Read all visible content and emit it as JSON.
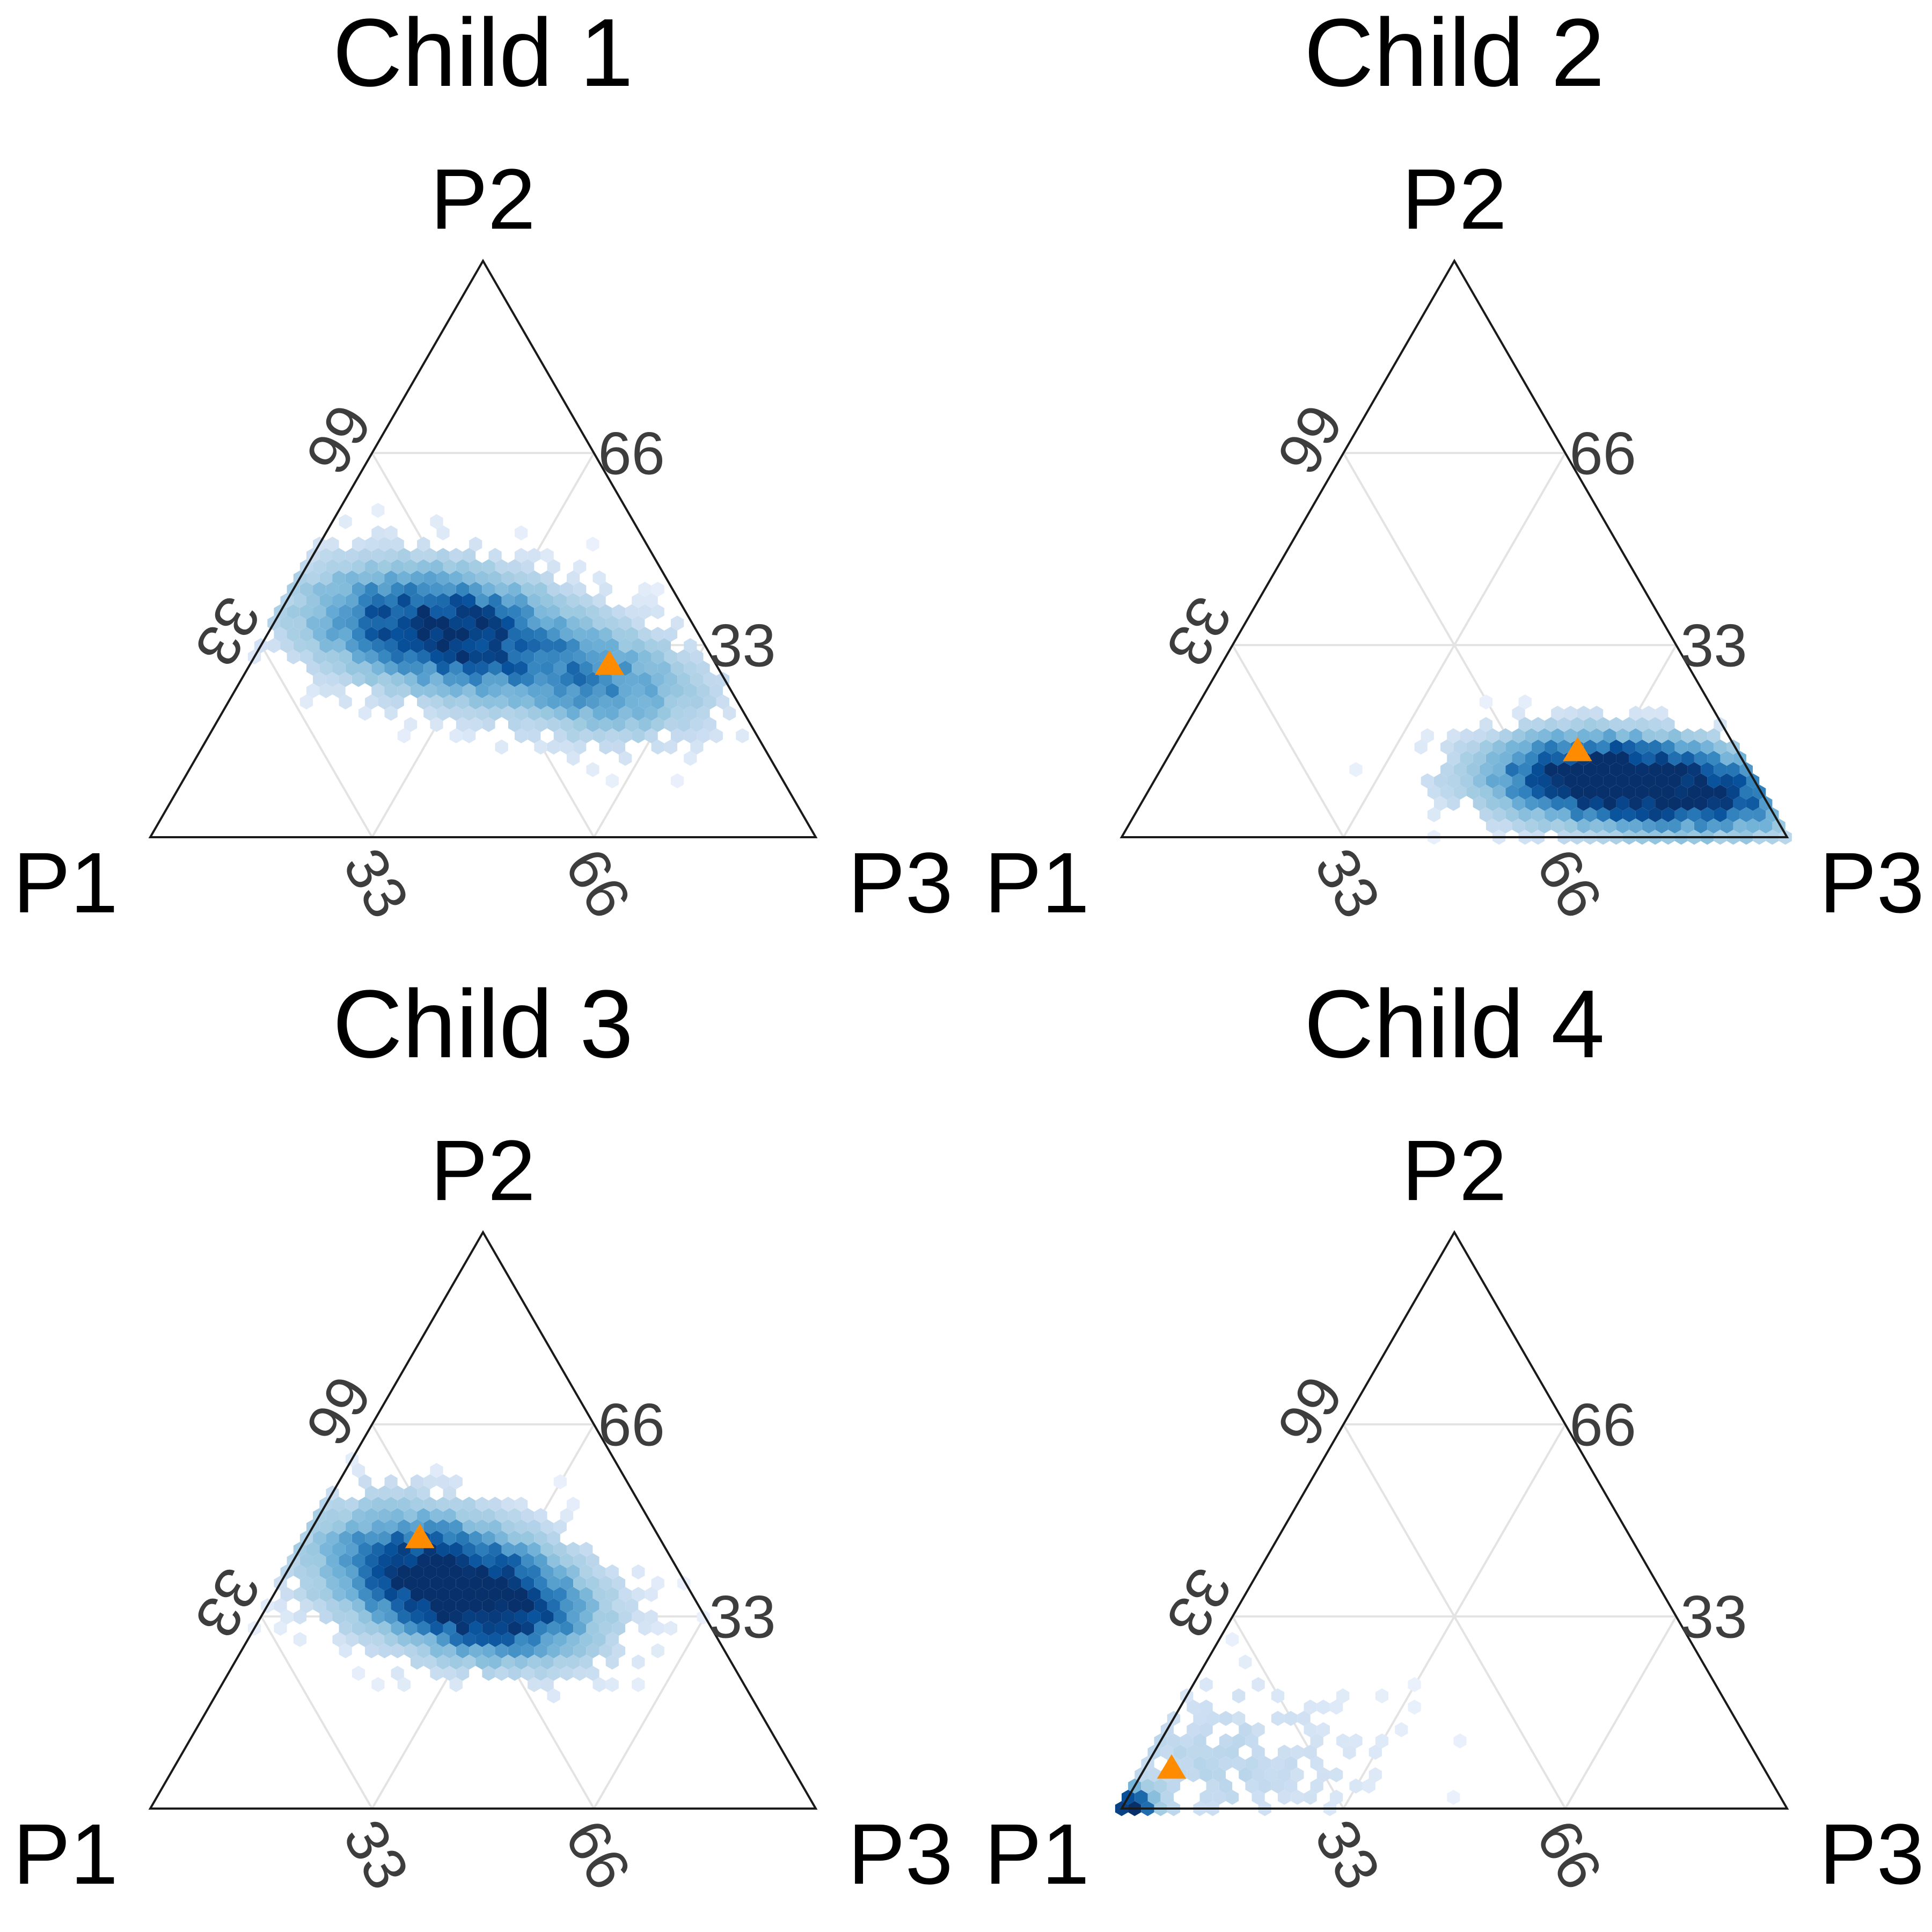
{
  "chart_data": [
    {
      "type": "heatmap",
      "subtype": "ternary-hexbin",
      "title": "Child 1",
      "axes": [
        "P1",
        "P2",
        "P3"
      ],
      "ticks": [
        "33",
        "66"
      ],
      "colormap": [
        "#eef3fd",
        "#c6dbef",
        "#9ecae1",
        "#6baed6",
        "#3182bd",
        "#08519c",
        "#08306b"
      ],
      "marker": {
        "p1": 0.16,
        "p2": 0.3,
        "p3": 0.54,
        "color": "#ff8c00",
        "shape": "triangle"
      },
      "density": [
        {
          "p1": 0.38,
          "p2": 0.36,
          "p3": 0.26,
          "sx": 0.13,
          "sy": 0.07,
          "rho": -0.25,
          "w": 1.0
        },
        {
          "p1": 0.18,
          "p2": 0.26,
          "p3": 0.56,
          "sx": 0.1,
          "sy": 0.06,
          "rho": -0.1,
          "w": 0.45
        }
      ]
    },
    {
      "type": "heatmap",
      "subtype": "ternary-hexbin",
      "title": "Child 2",
      "axes": [
        "P1",
        "P2",
        "P3"
      ],
      "ticks": [
        "33",
        "66"
      ],
      "colormap": [
        "#eef3fd",
        "#c6dbef",
        "#9ecae1",
        "#6baed6",
        "#3182bd",
        "#08519c",
        "#08306b"
      ],
      "marker": {
        "p1": 0.24,
        "p2": 0.15,
        "p3": 0.61,
        "color": "#ff8c00",
        "shape": "triangle"
      },
      "density": [
        {
          "p1": 0.14,
          "p2": 0.08,
          "p3": 0.78,
          "sx": 0.15,
          "sy": 0.05,
          "rho": -0.15,
          "w": 1.0
        },
        {
          "p1": 0.24,
          "p2": 0.12,
          "p3": 0.64,
          "sx": 0.1,
          "sy": 0.045,
          "rho": 0.0,
          "w": 0.6
        }
      ]
    },
    {
      "type": "heatmap",
      "subtype": "ternary-hexbin",
      "title": "Child 3",
      "axes": [
        "P1",
        "P2",
        "P3"
      ],
      "ticks": [
        "33",
        "66"
      ],
      "colormap": [
        "#eef3fd",
        "#c6dbef",
        "#9ecae1",
        "#6baed6",
        "#3182bd",
        "#08519c",
        "#08306b"
      ],
      "marker": {
        "p1": 0.36,
        "p2": 0.47,
        "p3": 0.17,
        "color": "#ff8c00",
        "shape": "triangle"
      },
      "density": [
        {
          "p1": 0.36,
          "p2": 0.4,
          "p3": 0.24,
          "sx": 0.12,
          "sy": 0.075,
          "rho": -0.3,
          "w": 1.0
        },
        {
          "p1": 0.3,
          "p2": 0.34,
          "p3": 0.36,
          "sx": 0.09,
          "sy": 0.055,
          "rho": -0.2,
          "w": 0.5
        }
      ]
    },
    {
      "type": "heatmap",
      "subtype": "ternary-hexbin",
      "title": "Child 4",
      "axes": [
        "P1",
        "P2",
        "P3"
      ],
      "ticks": [
        "33",
        "66"
      ],
      "colormap": [
        "#eef3fd",
        "#c6dbef",
        "#9ecae1",
        "#6baed6",
        "#3182bd",
        "#08519c",
        "#08306b"
      ],
      "marker": {
        "p1": 0.89,
        "p2": 0.07,
        "p3": 0.04,
        "color": "#ff8c00",
        "shape": "triangle"
      },
      "density": [
        {
          "p1": 0.985,
          "p2": 0.005,
          "p3": 0.01,
          "sx": 0.025,
          "sy": 0.02,
          "rho": 0.0,
          "w": 1.0
        },
        {
          "p1": 0.84,
          "p2": 0.08,
          "p3": 0.08,
          "sx": 0.16,
          "sy": 0.09,
          "rho": 0.0,
          "w": 0.14
        }
      ]
    }
  ]
}
